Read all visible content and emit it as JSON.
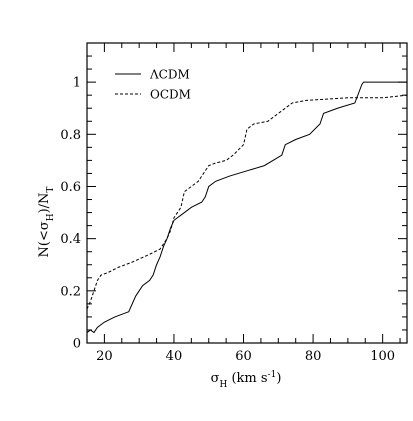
{
  "chart_data": {
    "type": "line",
    "title": "",
    "xlabel": "σH (km s⁻¹)",
    "xlabel_parts": {
      "sym": "σ",
      "sub": "H",
      "rest": " (km s",
      "sup": "-1",
      "close": ")"
    },
    "ylabel": "N(<σH)/NT",
    "ylabel_parts": {
      "a": "N(<σ",
      "sub1": "H",
      "b": ")/N",
      "sub2": "T"
    },
    "xlim": [
      15,
      107
    ],
    "ylim": [
      0,
      1.15
    ],
    "xticks_major": [
      20,
      40,
      60,
      80,
      100
    ],
    "xtick_labels": [
      "20",
      "40",
      "60",
      "80",
      "100"
    ],
    "xticks_minor": [
      15,
      25,
      30,
      35,
      45,
      50,
      55,
      65,
      70,
      75,
      85,
      90,
      95,
      105
    ],
    "yticks_major": [
      0,
      0.2,
      0.4,
      0.6,
      0.8,
      1
    ],
    "ytick_labels": [
      "0",
      "0.2",
      "0.4",
      "0.6",
      "0.8",
      "1"
    ],
    "yticks_minor": [
      0.05,
      0.1,
      0.15,
      0.25,
      0.3,
      0.35,
      0.45,
      0.5,
      0.55,
      0.65,
      0.7,
      0.75,
      0.85,
      0.9,
      0.95,
      1.05,
      1.1
    ],
    "legend_position": "top-left",
    "series": [
      {
        "name": "ΛCDM",
        "style": "solid",
        "points": [
          [
            15,
            0.04
          ],
          [
            16,
            0.05
          ],
          [
            17,
            0.04
          ],
          [
            18,
            0.06
          ],
          [
            20,
            0.08
          ],
          [
            23,
            0.1
          ],
          [
            27,
            0.12
          ],
          [
            29,
            0.18
          ],
          [
            31,
            0.22
          ],
          [
            33,
            0.24
          ],
          [
            34,
            0.26
          ],
          [
            35,
            0.3
          ],
          [
            36,
            0.33
          ],
          [
            37,
            0.37
          ],
          [
            38,
            0.4
          ],
          [
            39,
            0.44
          ],
          [
            40,
            0.47
          ],
          [
            41,
            0.48
          ],
          [
            42,
            0.49
          ],
          [
            45,
            0.52
          ],
          [
            48,
            0.54
          ],
          [
            49,
            0.56
          ],
          [
            50,
            0.6
          ],
          [
            52,
            0.62
          ],
          [
            56,
            0.64
          ],
          [
            61,
            0.66
          ],
          [
            66,
            0.68
          ],
          [
            71,
            0.72
          ],
          [
            72,
            0.76
          ],
          [
            75,
            0.78
          ],
          [
            79,
            0.8
          ],
          [
            82,
            0.84
          ],
          [
            83,
            0.88
          ],
          [
            87,
            0.9
          ],
          [
            92,
            0.92
          ],
          [
            94,
            0.99
          ],
          [
            94.5,
            1.0
          ],
          [
            107,
            1.0
          ]
        ]
      },
      {
        "name": "OCDM",
        "style": "dashed",
        "points": [
          [
            15,
            0.13
          ],
          [
            16,
            0.16
          ],
          [
            17,
            0.2
          ],
          [
            18,
            0.24
          ],
          [
            19,
            0.26
          ],
          [
            21,
            0.27
          ],
          [
            24,
            0.29
          ],
          [
            28,
            0.31
          ],
          [
            33,
            0.34
          ],
          [
            36,
            0.36
          ],
          [
            38,
            0.4
          ],
          [
            39,
            0.43
          ],
          [
            40,
            0.48
          ],
          [
            42,
            0.52
          ],
          [
            43,
            0.58
          ],
          [
            45,
            0.6
          ],
          [
            47,
            0.62
          ],
          [
            49,
            0.66
          ],
          [
            50,
            0.68
          ],
          [
            52,
            0.69
          ],
          [
            55,
            0.7
          ],
          [
            57,
            0.72
          ],
          [
            60,
            0.76
          ],
          [
            61,
            0.82
          ],
          [
            63,
            0.84
          ],
          [
            67,
            0.85
          ],
          [
            70,
            0.88
          ],
          [
            72,
            0.9
          ],
          [
            74,
            0.92
          ],
          [
            78,
            0.93
          ],
          [
            90,
            0.94
          ],
          [
            100,
            0.94
          ],
          [
            107,
            0.95
          ]
        ]
      }
    ]
  }
}
